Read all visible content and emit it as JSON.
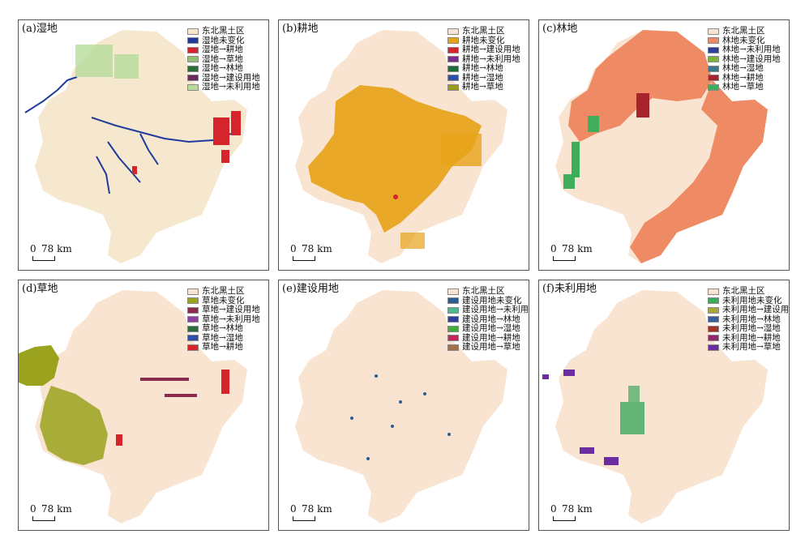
{
  "map": {
    "region_color": "#f9e4d2",
    "scale": {
      "zero": "0",
      "distance": "78 km"
    },
    "panels": [
      {
        "id": "a",
        "title": "(a)湿地",
        "accent": "#1f3c9a",
        "legend": [
          {
            "label": "东北黑土区",
            "color": "#f6e7cf"
          },
          {
            "label": "湿地未变化",
            "color": "#1f3c9a"
          },
          {
            "label": "湿地→耕地",
            "color": "#d6242c"
          },
          {
            "label": "湿地→草地",
            "color": "#8fc16e"
          },
          {
            "label": "湿地→林地",
            "color": "#2b6e3a"
          },
          {
            "label": "湿地→建设用地",
            "color": "#6b2a5e"
          },
          {
            "label": "湿地→未利用地",
            "color": "#b7dc9a"
          }
        ]
      },
      {
        "id": "b",
        "title": "(b)耕地",
        "accent": "#e7a318",
        "legend": [
          {
            "label": "东北黑土区",
            "color": "#f9e4d2"
          },
          {
            "label": "耕地未变化",
            "color": "#e7a318"
          },
          {
            "label": "耕地→建设用地",
            "color": "#d6242c"
          },
          {
            "label": "耕地→未利用地",
            "color": "#7b2d8e"
          },
          {
            "label": "耕地→林地",
            "color": "#1f6b3a"
          },
          {
            "label": "耕地→湿地",
            "color": "#2f4fa8"
          },
          {
            "label": "耕地→草地",
            "color": "#9a9a1e"
          }
        ]
      },
      {
        "id": "c",
        "title": "(c)林地",
        "accent": "#ee8a64",
        "legend": [
          {
            "label": "东北黑土区",
            "color": "#f9e4d2"
          },
          {
            "label": "林地未变化",
            "color": "#ee8a64"
          },
          {
            "label": "林地→未利用地",
            "color": "#2f3f9c"
          },
          {
            "label": "林地→建设用地",
            "color": "#7fb33a"
          },
          {
            "label": "林地→湿地",
            "color": "#3a7a8e"
          },
          {
            "label": "林地→耕地",
            "color": "#a8242c"
          },
          {
            "label": "林地→草地",
            "color": "#3fae5a"
          }
        ]
      },
      {
        "id": "d",
        "title": "(d)草地",
        "accent": "#9aa21e",
        "legend": [
          {
            "label": "东北黑土区",
            "color": "#f9e4d2"
          },
          {
            "label": "草地未变化",
            "color": "#9aa21e"
          },
          {
            "label": "草地→建设用地",
            "color": "#8a2a4e"
          },
          {
            "label": "草地→未利用地",
            "color": "#8e3fa0"
          },
          {
            "label": "草地→林地",
            "color": "#2b6e3a"
          },
          {
            "label": "草地→湿地",
            "color": "#2f4fa8"
          },
          {
            "label": "草地→耕地",
            "color": "#d6242c"
          }
        ]
      },
      {
        "id": "e",
        "title": "(e)建设用地",
        "accent": "#2d5e8e",
        "legend": [
          {
            "label": "东北黑土区",
            "color": "#f9e4d2"
          },
          {
            "label": "建设用地未变化",
            "color": "#2d5e8e"
          },
          {
            "label": "建设用地→未利用地",
            "color": "#4fb88a"
          },
          {
            "label": "建设用地→林地",
            "color": "#2f3f9c"
          },
          {
            "label": "建设用地→湿地",
            "color": "#3fae3a"
          },
          {
            "label": "建设用地→耕地",
            "color": "#c2265a"
          },
          {
            "label": "建设用地→草地",
            "color": "#a0704a"
          }
        ]
      },
      {
        "id": "f",
        "title": "(f)未利用地",
        "accent": "#3fa860",
        "legend": [
          {
            "label": "东北黑土区",
            "color": "#f9e4d2"
          },
          {
            "label": "未利用地未变化",
            "color": "#3fa860"
          },
          {
            "label": "未利用地→建设用地",
            "color": "#a8a83a"
          },
          {
            "label": "未利用地→林地",
            "color": "#3a5e9c"
          },
          {
            "label": "未利用地→湿地",
            "color": "#a8302c"
          },
          {
            "label": "未利用地→耕地",
            "color": "#8e2a6e"
          },
          {
            "label": "未利用地→草地",
            "color": "#6a2ea0"
          }
        ]
      }
    ]
  }
}
